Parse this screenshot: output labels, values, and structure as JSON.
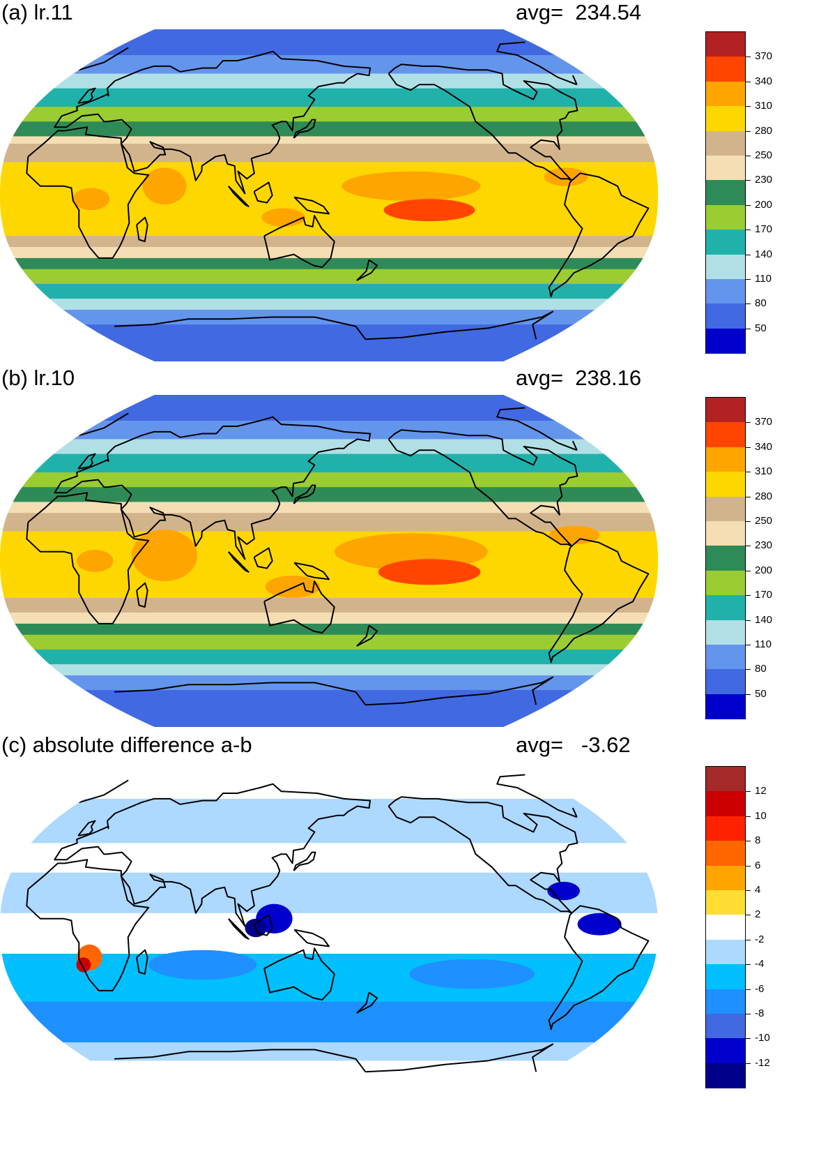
{
  "panels": [
    {
      "id": "a",
      "title": "(a) lr.11",
      "avg": "avg=  234.54",
      "colorbar": {
        "labels": [
          "370",
          "340",
          "310",
          "280",
          "250",
          "230",
          "200",
          "170",
          "140",
          "110",
          "80",
          "50"
        ],
        "colors": [
          "#b22222",
          "#ff4500",
          "#ffa500",
          "#ffd700",
          "#d2b48c",
          "#f5deb3",
          "#2e8b57",
          "#9acd32",
          "#20b2aa",
          "#b0e0e6",
          "#6495ed",
          "#4169e1",
          "#0000cd"
        ]
      },
      "bands": [
        {
          "lat_max": 90,
          "lat_min": 76,
          "color": "#4169e1"
        },
        {
          "lat_max": 76,
          "lat_min": 66,
          "color": "#6495ed"
        },
        {
          "lat_max": 66,
          "lat_min": 58,
          "color": "#b0e0e6"
        },
        {
          "lat_max": 58,
          "lat_min": 48,
          "color": "#20b2aa"
        },
        {
          "lat_max": 48,
          "lat_min": 40,
          "color": "#9acd32"
        },
        {
          "lat_max": 40,
          "lat_min": 32,
          "color": "#2e8b57"
        },
        {
          "lat_max": 32,
          "lat_min": 28,
          "color": "#f5deb3"
        },
        {
          "lat_max": 28,
          "lat_min": 18,
          "color": "#d2b48c"
        },
        {
          "lat_max": 18,
          "lat_min": -10,
          "color": "#ffd700"
        },
        {
          "lat_max": -10,
          "lat_min": -22,
          "color": "#ffd700"
        },
        {
          "lat_max": -22,
          "lat_min": -28,
          "color": "#d2b48c"
        },
        {
          "lat_max": -28,
          "lat_min": -34,
          "color": "#f5deb3"
        },
        {
          "lat_max": -34,
          "lat_min": -40,
          "color": "#2e8b57"
        },
        {
          "lat_max": -40,
          "lat_min": -48,
          "color": "#9acd32"
        },
        {
          "lat_max": -48,
          "lat_min": -56,
          "color": "#20b2aa"
        },
        {
          "lat_max": -56,
          "lat_min": -62,
          "color": "#b0e0e6"
        },
        {
          "lat_max": -62,
          "lat_min": -70,
          "color": "#6495ed"
        },
        {
          "lat_max": -70,
          "lat_min": -90,
          "color": "#4169e1"
        }
      ],
      "blobs": [
        {
          "lon": -165,
          "lat": 5,
          "rlon": 38,
          "rlat": 8,
          "color": "#ffa500"
        },
        {
          "lon": -155,
          "lat": -8,
          "rlon": 25,
          "rlat": 6,
          "color": "#ff4500"
        },
        {
          "lon": 60,
          "lat": 5,
          "rlon": 12,
          "rlat": 10,
          "color": "#ffa500"
        },
        {
          "lon": 20,
          "lat": -2,
          "rlon": 10,
          "rlat": 6,
          "color": "#ffa500"
        },
        {
          "lon": 125,
          "lat": -12,
          "rlon": 12,
          "rlat": 5,
          "color": "#ffa500"
        },
        {
          "lon": -80,
          "lat": 10,
          "rlon": 12,
          "rlat": 5,
          "color": "#ffa500"
        }
      ]
    },
    {
      "id": "b",
      "title": "(b) lr.10",
      "avg": "avg=  238.16",
      "colorbar": {
        "labels": [
          "370",
          "340",
          "310",
          "280",
          "250",
          "230",
          "200",
          "170",
          "140",
          "110",
          "80",
          "50"
        ],
        "colors": [
          "#b22222",
          "#ff4500",
          "#ffa500",
          "#ffd700",
          "#d2b48c",
          "#f5deb3",
          "#2e8b57",
          "#9acd32",
          "#20b2aa",
          "#b0e0e6",
          "#6495ed",
          "#4169e1",
          "#0000cd"
        ]
      },
      "bands": [
        {
          "lat_max": 90,
          "lat_min": 76,
          "color": "#4169e1"
        },
        {
          "lat_max": 76,
          "lat_min": 66,
          "color": "#6495ed"
        },
        {
          "lat_max": 66,
          "lat_min": 58,
          "color": "#b0e0e6"
        },
        {
          "lat_max": 58,
          "lat_min": 48,
          "color": "#20b2aa"
        },
        {
          "lat_max": 48,
          "lat_min": 40,
          "color": "#9acd32"
        },
        {
          "lat_max": 40,
          "lat_min": 32,
          "color": "#2e8b57"
        },
        {
          "lat_max": 32,
          "lat_min": 26,
          "color": "#f5deb3"
        },
        {
          "lat_max": 26,
          "lat_min": 16,
          "color": "#d2b48c"
        },
        {
          "lat_max": 16,
          "lat_min": -20,
          "color": "#ffd700"
        },
        {
          "lat_max": -20,
          "lat_min": -28,
          "color": "#d2b48c"
        },
        {
          "lat_max": -28,
          "lat_min": -34,
          "color": "#f5deb3"
        },
        {
          "lat_max": -34,
          "lat_min": -40,
          "color": "#2e8b57"
        },
        {
          "lat_max": -40,
          "lat_min": -48,
          "color": "#9acd32"
        },
        {
          "lat_max": -48,
          "lat_min": -56,
          "color": "#20b2aa"
        },
        {
          "lat_max": -56,
          "lat_min": -62,
          "color": "#b0e0e6"
        },
        {
          "lat_max": -62,
          "lat_min": -70,
          "color": "#6495ed"
        },
        {
          "lat_max": -70,
          "lat_min": -90,
          "color": "#4169e1"
        }
      ],
      "blobs": [
        {
          "lon": -165,
          "lat": 5,
          "rlon": 42,
          "rlat": 10,
          "color": "#ffa500"
        },
        {
          "lon": -155,
          "lat": -6,
          "rlon": 28,
          "rlat": 7,
          "color": "#ff4500"
        },
        {
          "lon": 60,
          "lat": 3,
          "rlon": 18,
          "rlat": 14,
          "color": "#ffa500"
        },
        {
          "lon": 130,
          "lat": -14,
          "rlon": 15,
          "rlat": 6,
          "color": "#ffa500"
        },
        {
          "lon": -75,
          "lat": 14,
          "rlon": 14,
          "rlat": 5,
          "color": "#ffa500"
        },
        {
          "lon": 22,
          "lat": 0,
          "rlon": 10,
          "rlat": 6,
          "color": "#ffa500"
        }
      ]
    },
    {
      "id": "c",
      "title": "(c) absolute difference a-b",
      "avg": "avg=   -3.62",
      "colorbar": {
        "labels": [
          "12",
          "10",
          "8",
          "6",
          "4",
          "2",
          "-2",
          "-4",
          "-6",
          "-8",
          "-10",
          "-12"
        ],
        "colors": [
          "#a52a2a",
          "#cc0000",
          "#ff2200",
          "#ff6600",
          "#ffa500",
          "#ffdd33",
          "#ffffff",
          "#add8ff",
          "#00bfff",
          "#1e90ff",
          "#4169e1",
          "#0000cd",
          "#00008b"
        ]
      },
      "bands": [
        {
          "lat_max": 90,
          "lat_min": 70,
          "color": "#ffffff"
        },
        {
          "lat_max": 70,
          "lat_min": 46,
          "color": "#add8ff"
        },
        {
          "lat_max": 46,
          "lat_min": 30,
          "color": "#ffffff"
        },
        {
          "lat_max": 30,
          "lat_min": 8,
          "color": "#add8ff"
        },
        {
          "lat_max": 8,
          "lat_min": -14,
          "color": "#ffffff"
        },
        {
          "lat_max": -14,
          "lat_min": -40,
          "color": "#00bfff"
        },
        {
          "lat_max": -40,
          "lat_min": -62,
          "color": "#1e90ff"
        },
        {
          "lat_max": -62,
          "lat_min": -72,
          "color": "#add8ff"
        },
        {
          "lat_max": -72,
          "lat_min": -90,
          "color": "#ffffff"
        }
      ],
      "blobs": [
        {
          "lon": 120,
          "lat": 5,
          "rlon": 10,
          "rlat": 8,
          "color": "#0000cd"
        },
        {
          "lon": 110,
          "lat": 0,
          "rlon": 6,
          "rlat": 5,
          "color": "#00008b"
        },
        {
          "lon": -62,
          "lat": 2,
          "rlon": 12,
          "rlat": 6,
          "color": "#0000cd"
        },
        {
          "lon": -80,
          "lat": 20,
          "rlon": 9,
          "rlat": 5,
          "color": "#0000cd"
        },
        {
          "lon": 18,
          "lat": -16,
          "rlon": 7,
          "rlat": 7,
          "color": "#ff6600"
        },
        {
          "lon": 14,
          "lat": -20,
          "rlon": 4,
          "rlat": 4,
          "color": "#cc0000"
        },
        {
          "lon": 80,
          "lat": -20,
          "rlon": 30,
          "rlat": 8,
          "color": "#1e90ff"
        },
        {
          "lon": -130,
          "lat": -25,
          "rlon": 35,
          "rlat": 8,
          "color": "#1e90ff"
        }
      ]
    }
  ]
}
